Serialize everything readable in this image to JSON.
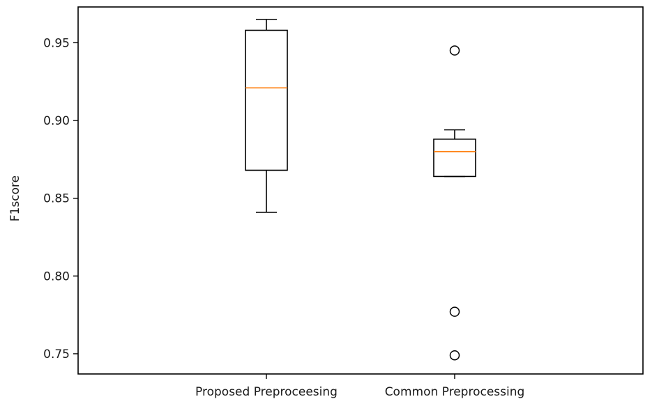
{
  "chart_data": {
    "type": "box",
    "title": "",
    "xlabel": "",
    "ylabel": "F1score",
    "ylim": [
      0.737,
      0.973
    ],
    "yticks": [
      0.75,
      0.8,
      0.85,
      0.9,
      0.95
    ],
    "ytick_labels": [
      "0.75",
      "0.80",
      "0.85",
      "0.90",
      "0.95"
    ],
    "categories": [
      "Proposed Preproceesing",
      "Common Preprocessing"
    ],
    "boxes": [
      {
        "category": "Proposed Preproceesing",
        "whisker_low": 0.841,
        "q1": 0.868,
        "median": 0.921,
        "q3": 0.958,
        "whisker_high": 0.965,
        "outliers": []
      },
      {
        "category": "Common Preprocessing",
        "whisker_low": 0.864,
        "q1": 0.864,
        "median": 0.88,
        "q3": 0.888,
        "whisker_high": 0.894,
        "outliers": [
          0.945,
          0.777,
          0.749
        ]
      }
    ],
    "grid": false,
    "colors": {
      "box": "#000000",
      "median": "#ff7f0e"
    }
  }
}
